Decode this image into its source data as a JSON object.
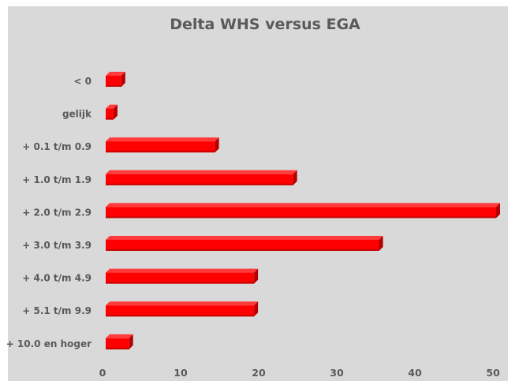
{
  "chart_data": {
    "type": "bar",
    "orientation": "horizontal",
    "title": "Delta WHS versus EGA",
    "xlabel": "",
    "ylabel": "",
    "categories": [
      "< 0",
      "gelijk",
      "+ 0.1 t/m 0.9",
      "+ 1.0 t/m 1.9",
      "+ 2.0 t/m 2.9",
      "+ 3.0 t/m 3.9",
      "+ 4.0 t/m 4.9",
      "+ 5.1 t/m 9.9",
      "+ 10.0 en hoger"
    ],
    "values": [
      2,
      1,
      14,
      24,
      50,
      35,
      19,
      19,
      3
    ],
    "xlim": [
      0,
      50
    ],
    "xticks": [
      "0",
      "10",
      "20",
      "30",
      "40",
      "50"
    ],
    "grid": false,
    "legend": "none",
    "style": "3d-bars",
    "colors": {
      "background": "#d9d9d9",
      "bar_front": "#ff0000",
      "bar_top": "#ff3b3b",
      "bar_side": "#b30000",
      "text": "#595959"
    }
  }
}
